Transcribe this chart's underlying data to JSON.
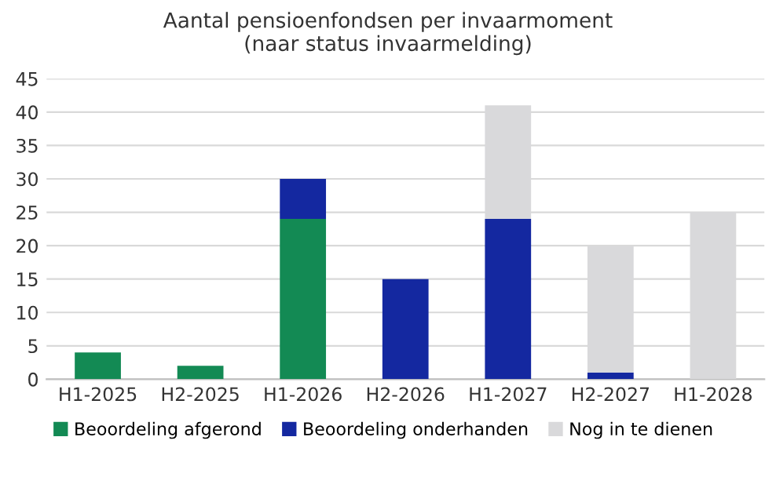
{
  "chart_data": {
    "type": "bar",
    "title": "Aantal pensioenfondsen per invaarmoment\n(naar status invaarmelding)",
    "categories": [
      "H1-2025",
      "H2-2025",
      "H1-2026",
      "H2-2026",
      "H1-2027",
      "H2-2027",
      "H1-2028"
    ],
    "stacked": true,
    "series": [
      {
        "name": "Beoordeling afgerond",
        "color": "#138a54",
        "values": [
          4,
          2,
          24,
          null,
          null,
          null,
          null
        ]
      },
      {
        "name": "Beoordeling onderhanden",
        "color": "#1428a0",
        "values": [
          null,
          null,
          6,
          15,
          24,
          1,
          null
        ]
      },
      {
        "name": "Nog in te dienen",
        "color": "#d9d9db",
        "values": [
          null,
          null,
          null,
          null,
          17,
          19,
          25
        ]
      }
    ],
    "ylim": [
      0,
      45
    ],
    "yticks": [
      0,
      5,
      10,
      15,
      20,
      25,
      30,
      35,
      40,
      45
    ],
    "grid": "y",
    "legend": "bottom"
  }
}
